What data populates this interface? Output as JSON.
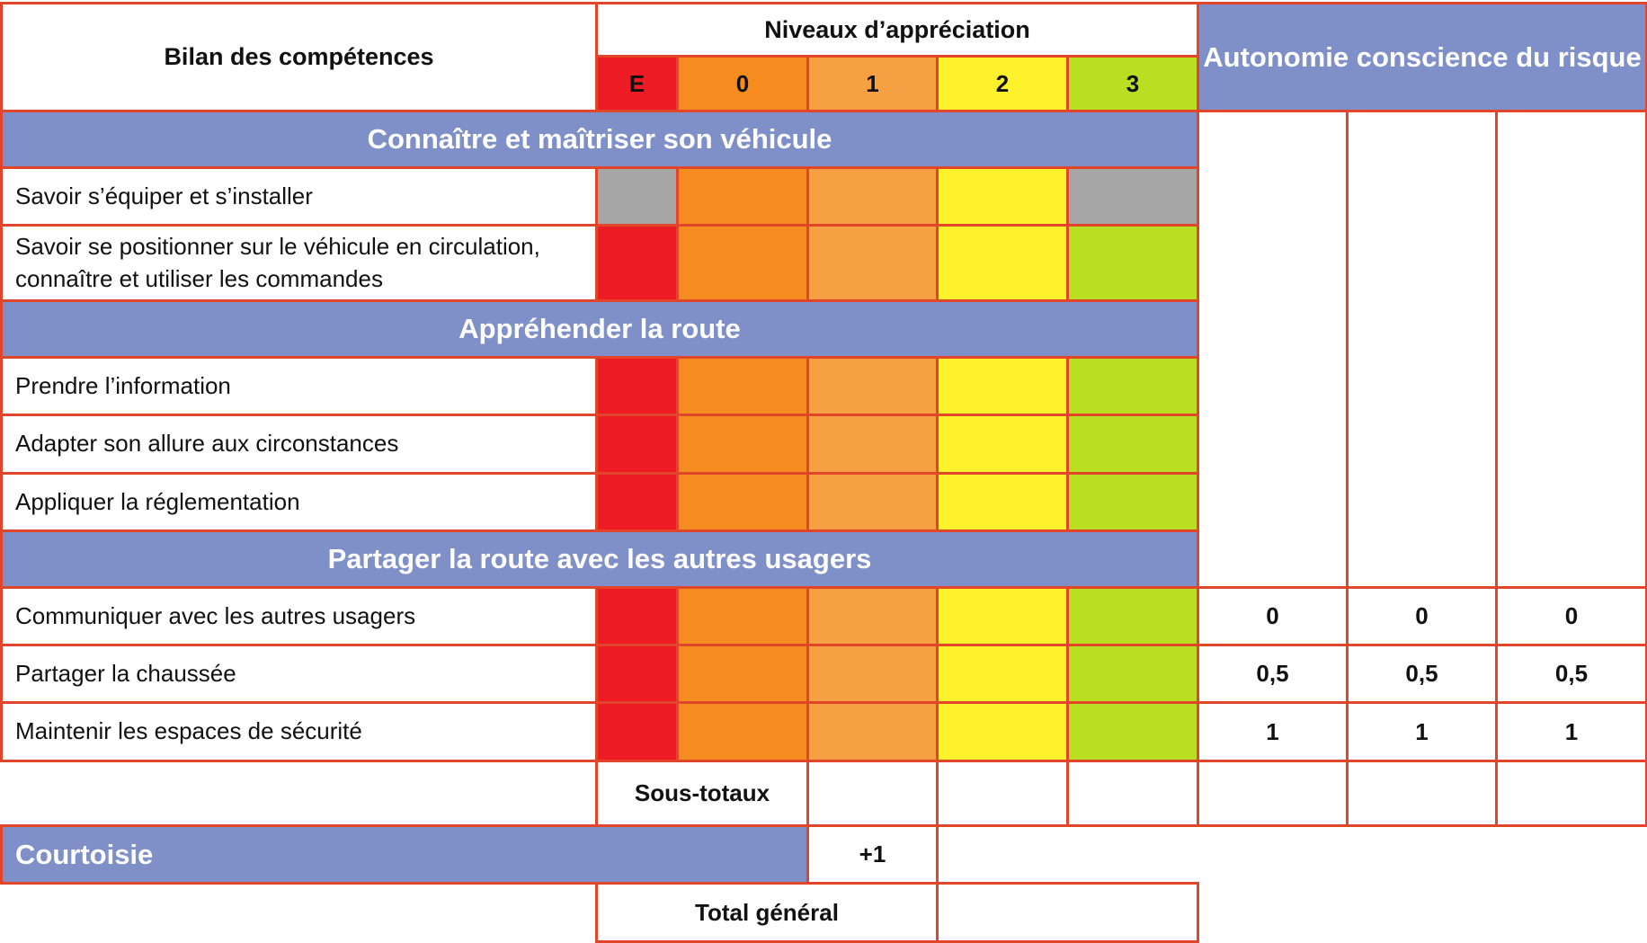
{
  "colors": {
    "border": "#e2462a",
    "band": "#7f90c9",
    "level_E": "#ed1c24",
    "level_0": "#f68b1f",
    "level_1": "#f7a043",
    "level_2": "#fff22d",
    "level_3": "#b9df22",
    "na_gray": "#a6a6a6"
  },
  "header": {
    "bilan": "Bilan des compétences",
    "niveaux": "Niveaux d’appréciation",
    "autonomie": "Autonomie conscience du risque",
    "levels": [
      "E",
      "0",
      "1",
      "2",
      "3"
    ]
  },
  "sections": [
    {
      "title": "Connaître et maîtriser son véhicule",
      "rows": [
        {
          "label": "Savoir s’équiper et s’installer"
        },
        {
          "label": "Savoir se positionner sur le véhicule en circulation,\nconnaître et utiliser les commandes"
        }
      ]
    },
    {
      "title": "Appréhender la route",
      "rows": [
        {
          "label": "Prendre l’information"
        },
        {
          "label": "Adapter son allure aux circonstances"
        },
        {
          "label": "Appliquer la réglementation"
        }
      ]
    },
    {
      "title": "Partager la route avec les autres usagers",
      "rows": [
        {
          "label": "Communiquer avec les autres usagers",
          "autonomie": [
            "0",
            "0",
            "0"
          ]
        },
        {
          "label": "Partager la chaussée",
          "autonomie": [
            "0,5",
            "0,5",
            "0,5"
          ]
        },
        {
          "label": "Maintenir les espaces de sécurité",
          "autonomie": [
            "1",
            "1",
            "1"
          ]
        }
      ]
    }
  ],
  "footer": {
    "sous_totaux": "Sous-totaux",
    "courtoisie": "Courtoisie",
    "courtoisie_bonus": "+1",
    "total_general": "Total général"
  }
}
